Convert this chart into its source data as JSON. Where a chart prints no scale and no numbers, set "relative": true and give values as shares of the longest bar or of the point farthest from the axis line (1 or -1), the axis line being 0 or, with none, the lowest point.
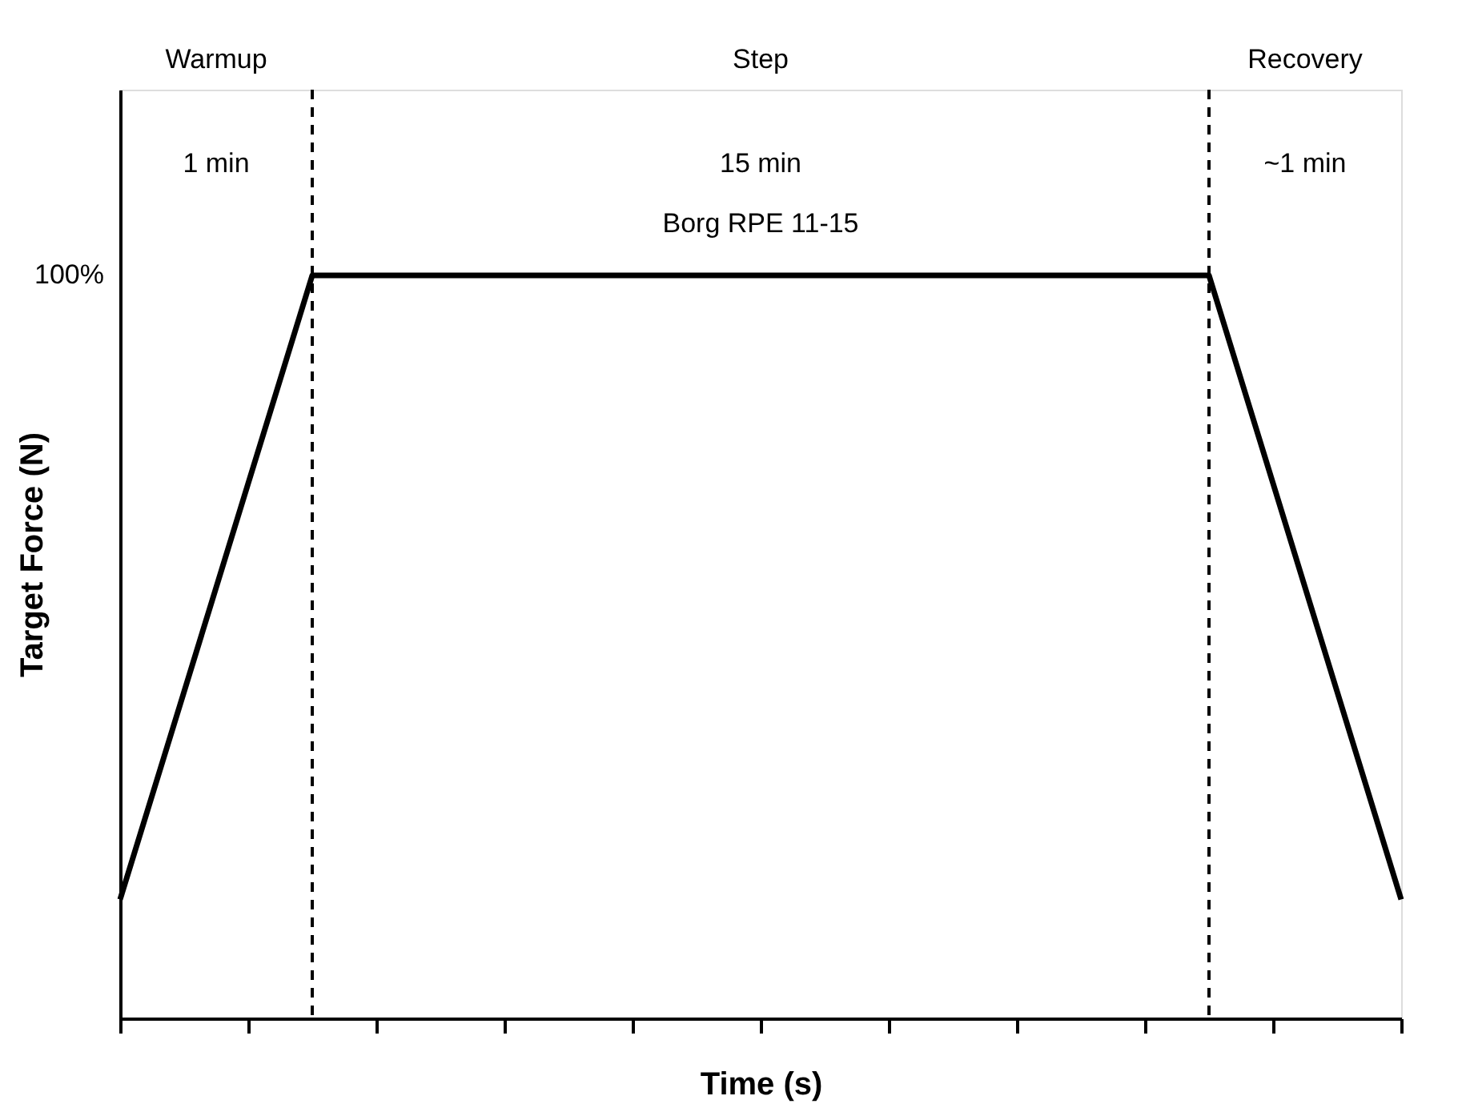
{
  "chart_data": {
    "type": "line",
    "relative": true,
    "xlabel": "Time (s)",
    "ylabel": "Target Force (N)",
    "categories": [
      null,
      null,
      null,
      null,
      null,
      null,
      null,
      null,
      null,
      null,
      null,
      null,
      null,
      null,
      null,
      null,
      null,
      null,
      null,
      null,
      null
    ],
    "series": [
      {
        "color": "#000000",
        "values": [
          0.16,
          0.44,
          0.72,
          1,
          1,
          1,
          1,
          1,
          1,
          1,
          1,
          1,
          1,
          1,
          1,
          1,
          1,
          1,
          0.72,
          0.44,
          0.16
        ]
      }
    ],
    "annotations": [
      "Warmup",
      "Step",
      "Recovery",
      "1 min",
      "15 min",
      "~1 min",
      "Borg RPE 11-15",
      "100%"
    ],
    "grid": false,
    "marker": "none",
    "line_style": "solid"
  }
}
